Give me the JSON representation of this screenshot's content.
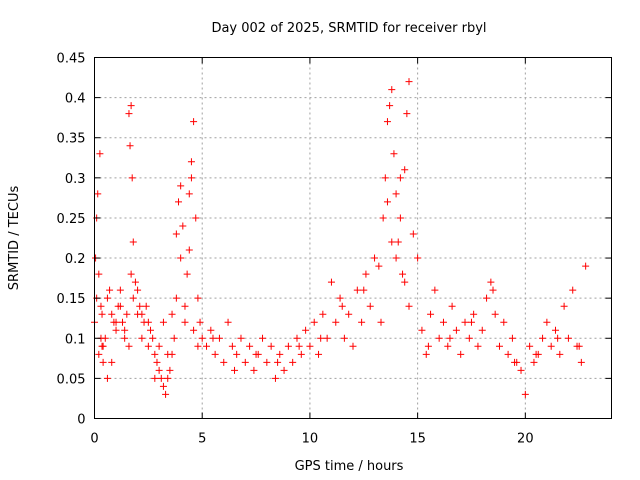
{
  "chart_data": {
    "type": "scatter",
    "title": "Day 002 of 2025, SRMTID for receiver rbyl",
    "xlabel": "GPS time / hours",
    "ylabel": "SRMTID / TECUs",
    "xlim": [
      0,
      24
    ],
    "ylim": [
      0,
      0.45
    ],
    "x_ticks": [
      0,
      5,
      10,
      15,
      20
    ],
    "x_tick_labels": [
      "0",
      "5",
      "10",
      "15",
      "20"
    ],
    "y_ticks": [
      0,
      0.05,
      0.1,
      0.15,
      0.2,
      0.25,
      0.3,
      0.35,
      0.4,
      0.45
    ],
    "y_tick_labels": [
      "0",
      "0.05",
      "0.1",
      "0.15",
      "0.2",
      "0.25",
      "0.3",
      "0.35",
      "0.4",
      "0.45"
    ],
    "grid": true,
    "marker": "+",
    "color": "#ff0000",
    "series": [
      {
        "name": "SRMTID",
        "x": [
          0.0,
          0.05,
          0.1,
          0.15,
          0.2,
          0.25,
          0.3,
          0.35,
          0.4,
          0.5,
          0.6,
          0.7,
          0.8,
          0.9,
          1.0,
          1.1,
          1.2,
          1.3,
          1.4,
          1.5,
          1.6,
          1.65,
          1.7,
          1.75,
          1.8,
          1.9,
          2.0,
          2.1,
          2.2,
          2.3,
          2.4,
          2.5,
          2.6,
          2.7,
          2.8,
          2.9,
          3.0,
          3.1,
          3.2,
          3.3,
          3.4,
          3.5,
          3.6,
          3.7,
          3.8,
          3.9,
          4.0,
          4.1,
          4.2,
          4.3,
          4.4,
          4.5,
          4.6,
          4.7,
          4.8,
          4.9,
          5.0,
          5.2,
          5.4,
          5.6,
          5.8,
          6.0,
          6.2,
          6.4,
          6.6,
          6.8,
          7.0,
          7.2,
          7.4,
          7.6,
          7.8,
          8.0,
          8.2,
          8.4,
          8.6,
          8.8,
          9.0,
          9.2,
          9.4,
          9.6,
          9.8,
          10.0,
          10.2,
          10.4,
          10.6,
          10.8,
          11.0,
          11.2,
          11.4,
          11.6,
          11.8,
          12.0,
          12.2,
          12.4,
          12.6,
          12.8,
          13.0,
          13.2,
          13.4,
          13.5,
          13.6,
          13.7,
          13.8,
          13.9,
          14.0,
          14.1,
          14.2,
          14.3,
          14.4,
          14.5,
          14.6,
          14.8,
          15.0,
          15.2,
          15.4,
          15.6,
          15.8,
          16.0,
          16.2,
          16.4,
          16.6,
          16.8,
          17.0,
          17.2,
          17.4,
          17.6,
          17.8,
          18.0,
          18.2,
          18.4,
          18.6,
          18.8,
          19.0,
          19.2,
          19.4,
          19.6,
          19.8,
          20.0,
          20.2,
          20.4,
          20.6,
          20.8,
          21.0,
          21.2,
          21.4,
          21.6,
          21.8,
          22.0,
          22.2,
          22.4,
          22.6,
          22.8,
          0.1,
          0.2,
          0.3,
          0.35,
          0.4,
          0.6,
          0.8,
          1.0,
          1.2,
          1.4,
          1.6,
          1.7,
          1.8,
          2.0,
          2.2,
          2.5,
          2.8,
          3.0,
          3.2,
          3.4,
          3.6,
          3.8,
          4.0,
          4.2,
          4.4,
          4.5,
          4.6,
          4.8,
          5.5,
          6.5,
          7.5,
          8.5,
          9.5,
          10.5,
          11.5,
          12.5,
          13.3,
          13.6,
          13.8,
          14.0,
          14.2,
          14.4,
          14.6,
          15.5,
          16.5,
          17.5,
          18.5,
          19.5,
          20.5,
          21.5,
          22.5
        ],
        "y": [
          0.12,
          0.2,
          0.25,
          0.28,
          0.18,
          0.33,
          0.14,
          0.09,
          0.07,
          0.1,
          0.15,
          0.16,
          0.13,
          0.12,
          0.11,
          0.14,
          0.16,
          0.12,
          0.1,
          0.13,
          0.38,
          0.34,
          0.39,
          0.3,
          0.22,
          0.17,
          0.16,
          0.14,
          0.13,
          0.12,
          0.14,
          0.12,
          0.11,
          0.1,
          0.08,
          0.07,
          0.06,
          0.05,
          0.04,
          0.03,
          0.05,
          0.06,
          0.08,
          0.1,
          0.15,
          0.27,
          0.29,
          0.24,
          0.14,
          0.18,
          0.21,
          0.32,
          0.37,
          0.25,
          0.15,
          0.12,
          0.1,
          0.09,
          0.11,
          0.08,
          0.1,
          0.07,
          0.12,
          0.09,
          0.08,
          0.1,
          0.07,
          0.09,
          0.06,
          0.08,
          0.1,
          0.07,
          0.09,
          0.05,
          0.08,
          0.06,
          0.09,
          0.07,
          0.1,
          0.08,
          0.11,
          0.09,
          0.12,
          0.08,
          0.13,
          0.1,
          0.17,
          0.12,
          0.15,
          0.1,
          0.13,
          0.09,
          0.16,
          0.12,
          0.18,
          0.14,
          0.2,
          0.19,
          0.25,
          0.3,
          0.37,
          0.39,
          0.41,
          0.33,
          0.28,
          0.22,
          0.25,
          0.18,
          0.31,
          0.38,
          0.42,
          0.23,
          0.2,
          0.11,
          0.08,
          0.13,
          0.16,
          0.1,
          0.12,
          0.09,
          0.14,
          0.11,
          0.08,
          0.12,
          0.1,
          0.13,
          0.09,
          0.11,
          0.15,
          0.17,
          0.13,
          0.09,
          0.12,
          0.08,
          0.1,
          0.07,
          0.06,
          0.03,
          0.09,
          0.07,
          0.08,
          0.1,
          0.12,
          0.09,
          0.11,
          0.08,
          0.14,
          0.1,
          0.16,
          0.09,
          0.07,
          0.19,
          0.15,
          0.08,
          0.1,
          0.13,
          0.09,
          0.05,
          0.07,
          0.12,
          0.14,
          0.11,
          0.09,
          0.18,
          0.15,
          0.13,
          0.1,
          0.09,
          0.05,
          0.09,
          0.12,
          0.08,
          0.13,
          0.23,
          0.2,
          0.12,
          0.28,
          0.3,
          0.11,
          0.09,
          0.1,
          0.06,
          0.08,
          0.07,
          0.09,
          0.1,
          0.14,
          0.16,
          0.12,
          0.27,
          0.22,
          0.2,
          0.3,
          0.17,
          0.14,
          0.09,
          0.1,
          0.12,
          0.16,
          0.07,
          0.08,
          0.1,
          0.09
        ]
      }
    ]
  }
}
